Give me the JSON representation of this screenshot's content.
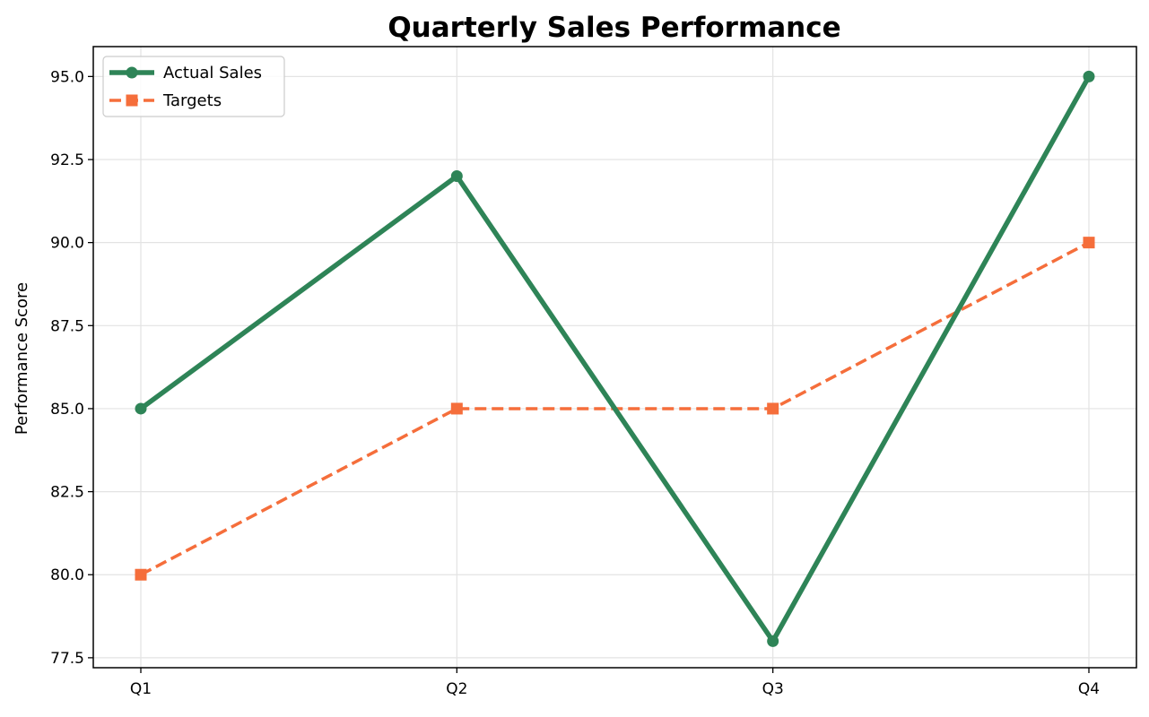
{
  "chart_data": {
    "type": "line",
    "title": "Quarterly Sales Performance",
    "xlabel": "",
    "ylabel": "Performance Score",
    "categories": [
      "Q1",
      "Q2",
      "Q3",
      "Q4"
    ],
    "ylim": [
      77.2,
      95.9
    ],
    "yticks": [
      77.5,
      80.0,
      82.5,
      85.0,
      87.5,
      90.0,
      92.5,
      95.0
    ],
    "ytick_labels": [
      "77.5",
      "80.0",
      "82.5",
      "85.0",
      "87.5",
      "90.0",
      "92.5",
      "95.0"
    ],
    "grid": true,
    "legend_position": "upper-left",
    "series": [
      {
        "name": "Actual Sales",
        "values": [
          85,
          92,
          78,
          95
        ],
        "color": "#2e8457",
        "line_style": "solid",
        "marker": "circle"
      },
      {
        "name": "Targets",
        "values": [
          80,
          85,
          85,
          90
        ],
        "color": "#f56e3b",
        "line_style": "dashed",
        "marker": "square"
      }
    ]
  }
}
